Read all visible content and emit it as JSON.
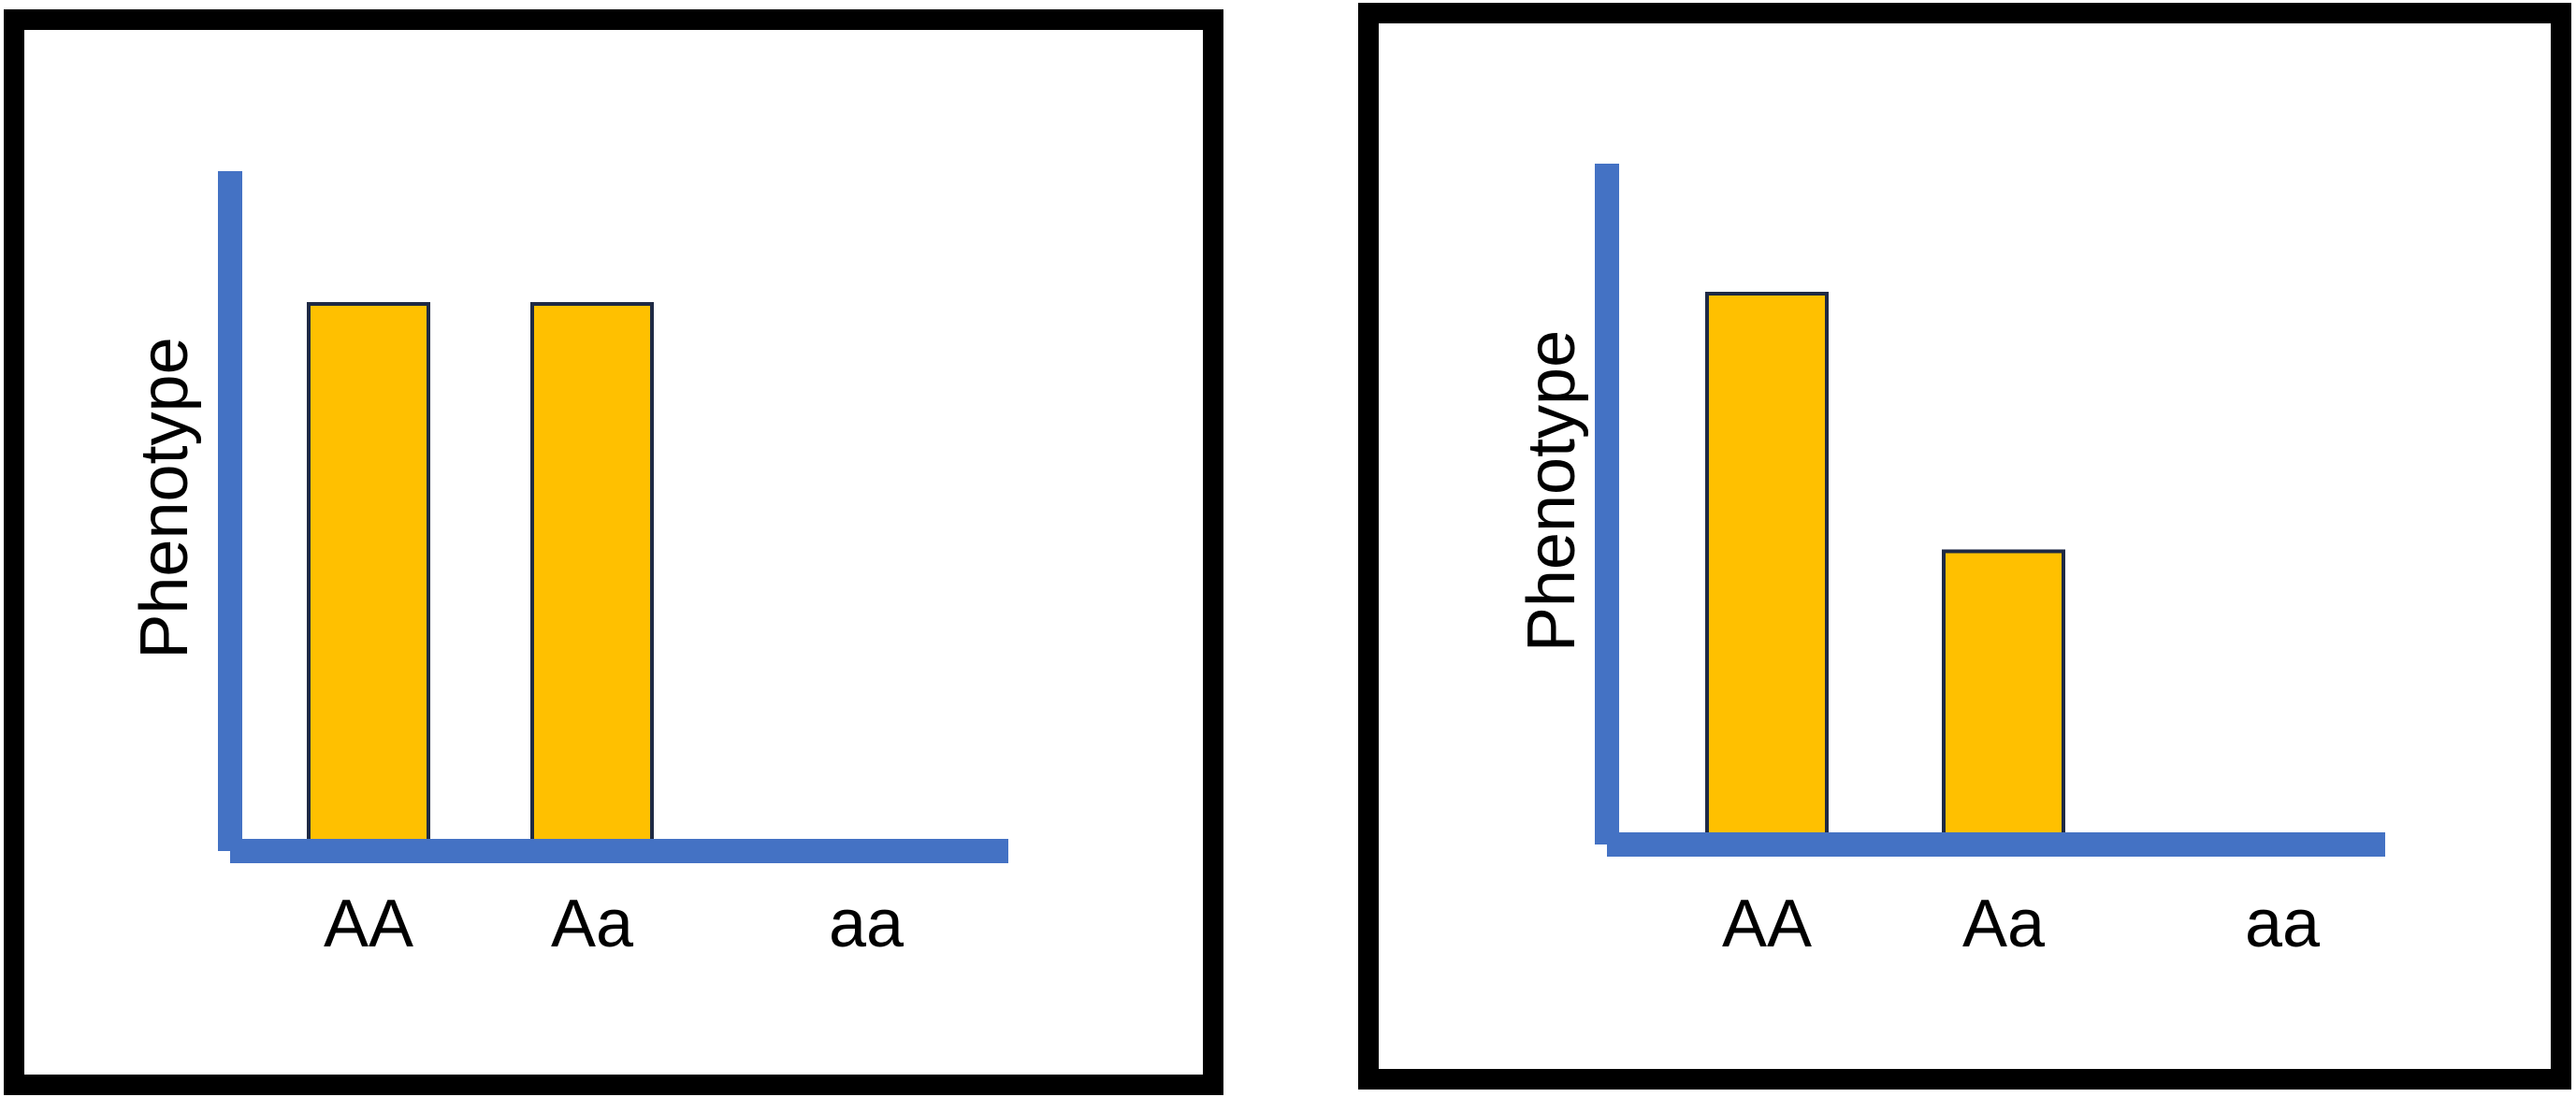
{
  "chart_data": [
    {
      "type": "bar",
      "categories": [
        "AA",
        "Aa",
        "aa"
      ],
      "values": [
        4,
        4,
        0
      ],
      "ylabel": "Phenotype",
      "xlabel": "",
      "ylim": [
        0,
        5
      ],
      "grid": false,
      "colors": {
        "bar": "#FFC000",
        "bar_edge": "#1F2A44",
        "axis": "#4472C4",
        "frame": "#000000"
      }
    },
    {
      "type": "bar",
      "categories": [
        "AA",
        "Aa",
        "aa"
      ],
      "values": [
        4,
        2.1,
        0
      ],
      "ylabel": "Phenotype",
      "xlabel": "",
      "ylim": [
        0,
        5
      ],
      "grid": false,
      "colors": {
        "bar": "#FFC000",
        "bar_edge": "#1F2A44",
        "axis": "#4472C4",
        "frame": "#000000"
      }
    }
  ]
}
